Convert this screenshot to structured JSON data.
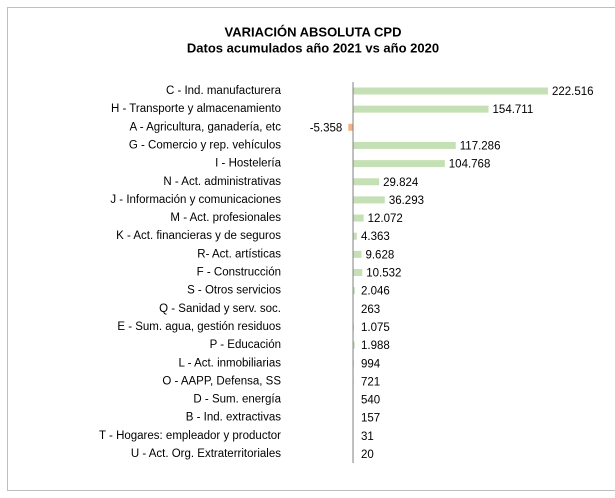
{
  "chart_data": {
    "type": "hbar",
    "title": "VARIACIÓN ABSOLUTA CPD",
    "subtitle": "Datos acumulados año 2021 vs año 2020",
    "categories": [
      "C - Ind. manufacturera",
      "H - Transporte y almacenamiento",
      "A - Agricultura, ganadería, etc",
      "G - Comercio y rep. vehículos",
      "I - Hostelería",
      "N - Act. administrativas",
      "J - Información y comunicaciones",
      "M - Act. profesionales",
      "K - Act. financieras y de seguros",
      "R- Act. artísticas",
      "F - Construcción",
      "S - Otros servicios",
      "Q - Sanidad y serv. soc.",
      "E - Sum. agua, gestión residuos",
      "P - Educación",
      "L - Act. inmobiliarias",
      "O - AAPP, Defensa, SS",
      "D - Sum. energía",
      "B - Ind. extractivas",
      "T - Hogares: empleador y productor",
      "U - Act. Org. Extraterritoriales"
    ],
    "values": [
      222516,
      154711,
      -5358,
      117286,
      104768,
      29824,
      36293,
      12072,
      4363,
      9628,
      10532,
      2046,
      263,
      1075,
      1988,
      994,
      721,
      540,
      157,
      31,
      20
    ],
    "value_labels": [
      "222.516",
      "154.711",
      "-5.358",
      "117.286",
      "104.768",
      "29.824",
      "36.293",
      "12.072",
      "4.363",
      "9.628",
      "10.532",
      "2.046",
      "263",
      "1.075",
      "1.988",
      "994",
      "721",
      "540",
      "157",
      "31",
      "20"
    ],
    "xlim": [
      -20000,
      230000
    ],
    "color": "#c5e0b4",
    "negative_color": "#f4b183"
  }
}
